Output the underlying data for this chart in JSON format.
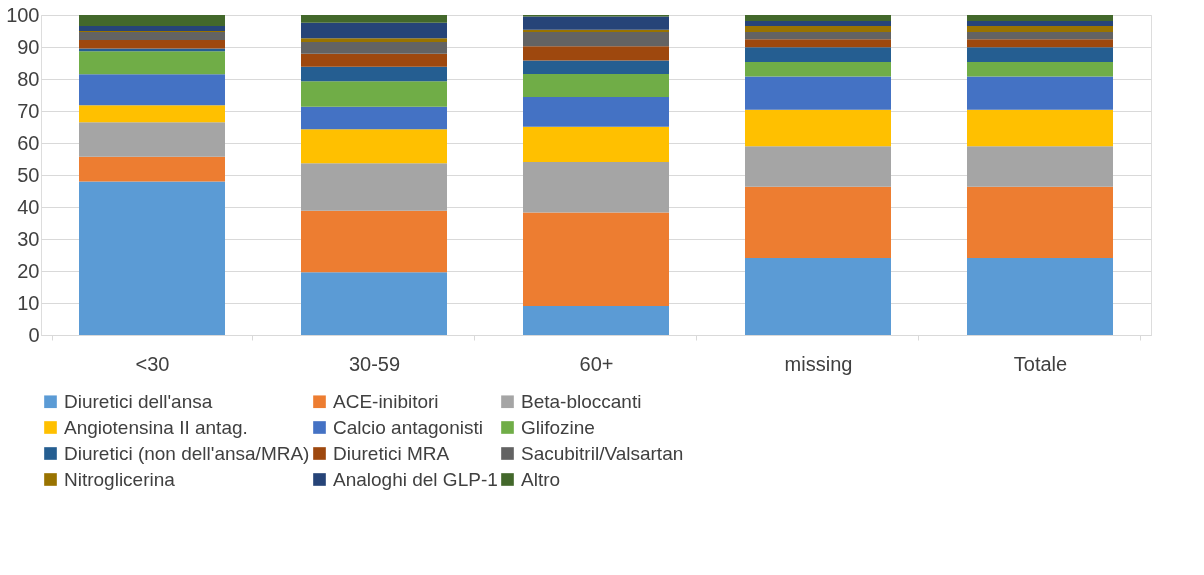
{
  "chart_data": {
    "type": "bar",
    "stacked": true,
    "categories": [
      "<30",
      "30-59",
      "60+",
      "missing",
      "Totale"
    ],
    "ylim": [
      0,
      100
    ],
    "yticks": [
      0,
      10,
      20,
      30,
      40,
      50,
      60,
      70,
      80,
      90,
      100
    ],
    "grid": "y",
    "legend": "bottom",
    "series": [
      {
        "name": "Diuretici dell'ansa",
        "color": "#5b9bd5",
        "values": [
          48,
          19.6,
          9.1,
          24.1,
          24.1
        ]
      },
      {
        "name": "ACE-inibitori",
        "color": "#ed7d31",
        "values": [
          7.7,
          19.2,
          29.2,
          22.2,
          22.2
        ]
      },
      {
        "name": "Beta-bloccanti",
        "color": "#a5a5a5",
        "values": [
          10.8,
          14.9,
          15.8,
          12.7,
          12.7
        ]
      },
      {
        "name": "Angiotensina II antag.",
        "color": "#ffc000",
        "values": [
          5.3,
          10.6,
          11.0,
          11.4,
          11.4
        ]
      },
      {
        "name": "Calcio antagonisti",
        "color": "#4472c4",
        "values": [
          9.7,
          7.0,
          9.3,
          10.4,
          10.4
        ]
      },
      {
        "name": "Glifozine",
        "color": "#70ad47",
        "values": [
          7.2,
          8.0,
          7.2,
          4.5,
          4.5
        ]
      },
      {
        "name": "Diuretici (non dell'ansa/MRA)",
        "color": "#255e91",
        "values": [
          0.8,
          4.5,
          4.2,
          4.6,
          4.6
        ]
      },
      {
        "name": "Diuretici MRA",
        "color": "#9e480e",
        "values": [
          2.7,
          4.1,
          4.4,
          2.5,
          2.5
        ]
      },
      {
        "name": "Sacubitril/Valsartan",
        "color": "#636363",
        "values": [
          2.5,
          3.7,
          4.5,
          2.3,
          2.3
        ]
      },
      {
        "name": "Nitroglicerina",
        "color": "#997300",
        "values": [
          0.3,
          1.1,
          0.7,
          1.9,
          1.9
        ]
      },
      {
        "name": "Analoghi del GLP-1",
        "color": "#264478",
        "values": [
          1.6,
          4.9,
          4.1,
          1.5,
          1.5
        ]
      },
      {
        "name": "Altro",
        "color": "#43682b",
        "values": [
          3.4,
          2.4,
          0.5,
          1.9,
          1.9
        ]
      }
    ]
  }
}
